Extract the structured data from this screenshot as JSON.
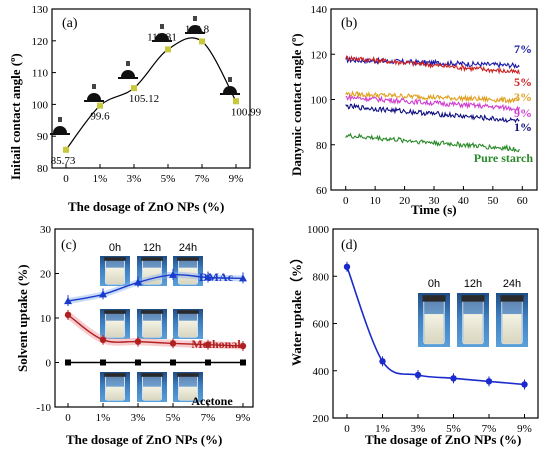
{
  "chart_data": [
    {
      "panel": "(a)",
      "type": "scatter",
      "ylabel": "Initail contact angle (º)",
      "xlabel": "The  dosage of  ZnO NPs (%)",
      "categories": [
        "0",
        "1%",
        "3%",
        "5%",
        "7%",
        "9%"
      ],
      "values": [
        85.73,
        99.6,
        105.12,
        117.31,
        119.8,
        100.99
      ],
      "point_labels": [
        "85.73",
        "99.6",
        "105.12",
        "117.31",
        "119.8",
        "100.99"
      ],
      "ylim": [
        80,
        130
      ],
      "yticks": [
        80,
        90,
        100,
        110,
        120,
        130
      ],
      "colors": {
        "marker": "#c8c83c",
        "curve": "#000000"
      }
    },
    {
      "panel": "(b)",
      "type": "line",
      "ylabel": "Danymic contact angle (º)",
      "xlabel": "Time (s)",
      "xlim": [
        -5,
        65
      ],
      "xticks": [
        0,
        10,
        20,
        30,
        40,
        50,
        60
      ],
      "ylim": [
        60,
        140
      ],
      "yticks": [
        60,
        80,
        100,
        120,
        140
      ],
      "series": [
        {
          "name": "7%",
          "color": "#1a1aaa",
          "start": 117.5,
          "end": 115.0
        },
        {
          "name": "5%",
          "color": "#cc2020",
          "start": 118.5,
          "end": 112.0
        },
        {
          "name": "3%",
          "color": "#e0a020",
          "start": 102.5,
          "end": 99.5
        },
        {
          "name": "9%",
          "color": "#d040d0",
          "start": 101.0,
          "end": 96.0
        },
        {
          "name": "1%",
          "color": "#101080",
          "start": 97.0,
          "end": 90.5
        },
        {
          "name": "Pure starch",
          "color": "#2a8a2a",
          "start": 84.0,
          "end": 78.0
        }
      ]
    },
    {
      "panel": "(c)",
      "type": "line",
      "ylabel": "Solvent uptake (%)",
      "xlabel": "The dosage of ZnO NPs (%)",
      "categories": [
        "0",
        "1%",
        "3%",
        "5%",
        "7%",
        "9%"
      ],
      "ylim": [
        -10,
        30
      ],
      "yticks": [
        -10,
        0,
        10,
        20,
        30
      ],
      "time_labels": [
        "0h",
        "12h",
        "24h"
      ],
      "series": [
        {
          "name": "DMAc",
          "color": "#1a3acc",
          "values": [
            13.8,
            15.3,
            18.0,
            19.7,
            19.1,
            18.9
          ]
        },
        {
          "name": "Methonal",
          "color": "#b02020",
          "values": [
            10.7,
            5.1,
            4.7,
            4.3,
            4.0,
            3.7
          ]
        },
        {
          "name": "Acetone",
          "color": "#000000",
          "values": [
            0,
            0,
            0,
            0,
            0,
            0
          ]
        }
      ]
    },
    {
      "panel": "(d)",
      "type": "line",
      "ylabel": "Water uptake（%）",
      "xlabel": "The dosage of ZnO NPs (%)",
      "categories": [
        "0",
        "1%",
        "3%",
        "5%",
        "7%",
        "9%"
      ],
      "ylim": [
        200,
        1000
      ],
      "yticks": [
        200,
        400,
        600,
        800,
        1000
      ],
      "time_labels": [
        "0h",
        "12h",
        "24h"
      ],
      "series": [
        {
          "name": "",
          "color": "#1a2acc",
          "values": [
            840,
            440,
            382,
            368,
            355,
            342
          ]
        }
      ]
    }
  ]
}
